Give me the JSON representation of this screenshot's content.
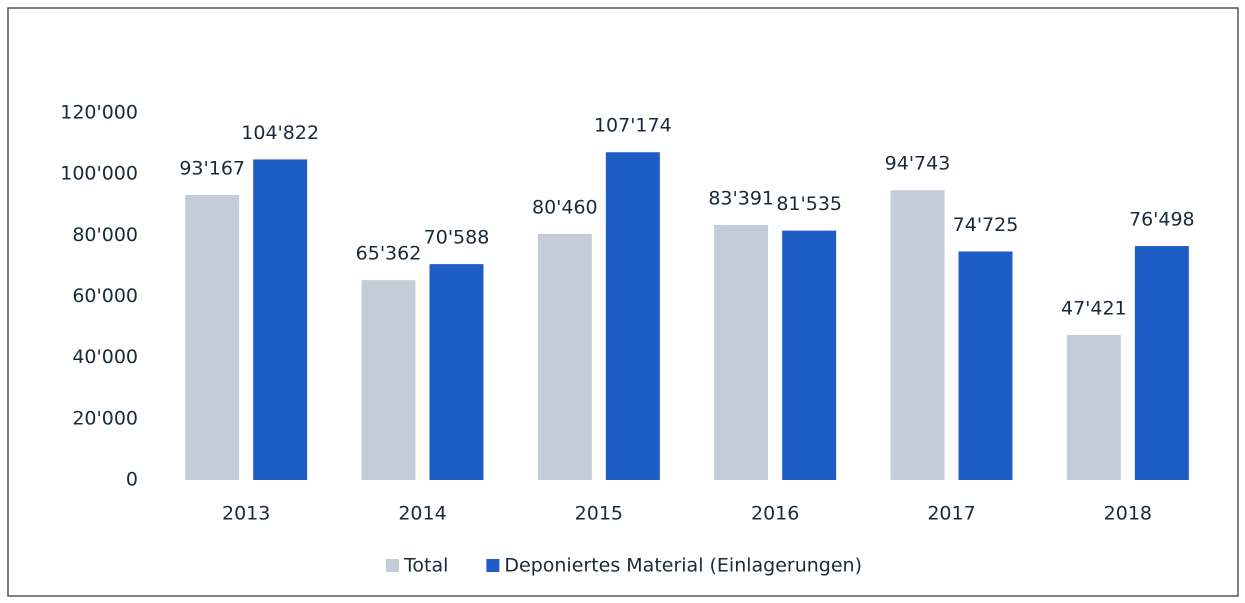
{
  "chart_data": {
    "type": "bar",
    "categories": [
      "2013",
      "2014",
      "2015",
      "2016",
      "2017",
      "2018"
    ],
    "series": [
      {
        "name": "Total",
        "color": "#c3ccd8",
        "values": [
          93167,
          65362,
          80460,
          83391,
          94743,
          47421
        ],
        "value_labels": [
          "93'167",
          "65'362",
          "80'460",
          "83'391",
          "94'743",
          "47'421"
        ]
      },
      {
        "name": "Deponiertes Material (Einlagerungen)",
        "color": "#1e5cc6",
        "values": [
          104822,
          70588,
          107174,
          81535,
          74725,
          76498
        ],
        "value_labels": [
          "104'822",
          "70'588",
          "107'174",
          "81'535",
          "74'725",
          "76'498"
        ]
      }
    ],
    "ylim": [
      0,
      120000
    ],
    "yticks": [
      0,
      {
        "value": 20000,
        "label": "20'000"
      },
      {
        "value": 40000,
        "label": "40'000"
      },
      {
        "value": 60000,
        "label": "60'000"
      },
      {
        "value": 80000,
        "label": "80'000"
      },
      {
        "value": 100000,
        "label": "100'000"
      },
      {
        "value": 120000,
        "label": "120'000"
      }
    ],
    "grid": false,
    "legend": "bottom"
  }
}
